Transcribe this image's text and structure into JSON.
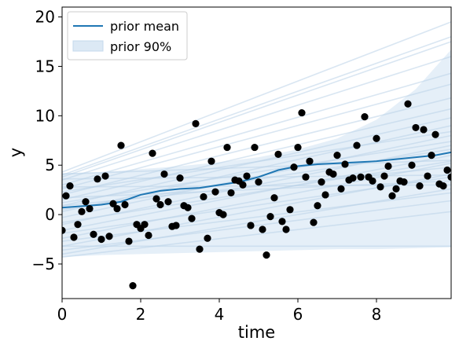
{
  "chart_data": {
    "type": "line",
    "title": "",
    "xlabel": "time",
    "ylabel": "y",
    "xlim": [
      0,
      9.9
    ],
    "ylim": [
      -8.5,
      21
    ],
    "xticks": [
      0,
      2,
      4,
      6,
      8
    ],
    "xtick_labels": [
      "0",
      "2",
      "4",
      "6",
      "8"
    ],
    "yticks": [
      -5,
      0,
      5,
      10,
      15,
      20
    ],
    "ytick_labels": [
      "−5",
      "0",
      "5",
      "10",
      "15",
      "20"
    ],
    "grid": false,
    "legend": {
      "placement": "top-left",
      "entries": [
        {
          "label": "prior mean",
          "kind": "line",
          "color": "#1f77b4"
        },
        {
          "label": "prior 90%",
          "kind": "band",
          "color": "#dce9f5"
        }
      ]
    },
    "series": [
      {
        "name": "prior mean",
        "color": "#1f77b4",
        "x": [
          0,
          0.5,
          1,
          1.5,
          2,
          2.5,
          3,
          3.5,
          4,
          4.5,
          5,
          5.5,
          6,
          6.5,
          7,
          7.5,
          8,
          8.5,
          9,
          9.5,
          9.9
        ],
        "y": [
          0.7,
          0.85,
          1.0,
          1.3,
          2.0,
          2.4,
          2.6,
          2.7,
          3.0,
          3.3,
          3.8,
          4.5,
          4.9,
          5.1,
          5.2,
          5.3,
          5.4,
          5.6,
          5.8,
          6.0,
          6.3
        ]
      },
      {
        "name": "prior 90%",
        "type": "area",
        "color": "#dce9f5",
        "x": [
          0,
          1,
          2,
          3,
          4,
          5,
          6,
          7,
          8,
          9,
          9.9
        ],
        "lower": [
          -4.3,
          -4.1,
          -4.0,
          -3.9,
          -3.8,
          -3.7,
          -3.6,
          -3.5,
          -3.5,
          -3.4,
          -3.3
        ],
        "upper": [
          4.2,
          4.3,
          4.6,
          4.9,
          5.3,
          5.8,
          6.6,
          7.7,
          9.6,
          12.7,
          16.7
        ]
      },
      {
        "name": "observations",
        "type": "scatter",
        "color": "#000000",
        "x": [
          0.0,
          0.1,
          0.2,
          0.3,
          0.4,
          0.5,
          0.6,
          0.7,
          0.8,
          0.9,
          1.0,
          1.1,
          1.2,
          1.3,
          1.4,
          1.5,
          1.6,
          1.7,
          1.8,
          1.9,
          2.0,
          2.1,
          2.2,
          2.3,
          2.4,
          2.5,
          2.6,
          2.7,
          2.8,
          2.9,
          3.0,
          3.1,
          3.2,
          3.3,
          3.4,
          3.5,
          3.6,
          3.7,
          3.8,
          3.9,
          4.0,
          4.1,
          4.2,
          4.3,
          4.4,
          4.5,
          4.6,
          4.7,
          4.8,
          4.9,
          5.0,
          5.1,
          5.2,
          5.3,
          5.4,
          5.5,
          5.6,
          5.7,
          5.8,
          5.9,
          6.0,
          6.1,
          6.2,
          6.3,
          6.4,
          6.5,
          6.6,
          6.7,
          6.8,
          6.9,
          7.0,
          7.1,
          7.2,
          7.3,
          7.4,
          7.5,
          7.6,
          7.7,
          7.8,
          7.9,
          8.0,
          8.1,
          8.2,
          8.3,
          8.4,
          8.5,
          8.6,
          8.7,
          8.8,
          8.9,
          9.0,
          9.1,
          9.2,
          9.3,
          9.4,
          9.5,
          9.6,
          9.7,
          9.8,
          9.9
        ],
        "y": [
          -1.6,
          1.9,
          2.9,
          -2.3,
          -1.0,
          0.3,
          1.3,
          0.6,
          -2.0,
          3.6,
          -2.5,
          3.9,
          -2.2,
          1.1,
          0.6,
          7.0,
          1.0,
          -2.7,
          -7.2,
          -1.0,
          -1.4,
          -1.0,
          -2.1,
          6.2,
          1.6,
          1.0,
          4.1,
          1.3,
          -1.2,
          -1.1,
          3.7,
          0.9,
          0.7,
          -0.4,
          9.2,
          -3.5,
          1.8,
          -2.4,
          5.4,
          2.3,
          0.2,
          0.0,
          6.8,
          2.2,
          3.5,
          3.4,
          3.0,
          3.9,
          -1.1,
          6.8,
          3.3,
          -1.5,
          -4.1,
          -0.2,
          1.7,
          6.1,
          -0.7,
          -1.5,
          0.5,
          4.8,
          6.8,
          10.3,
          3.8,
          5.4,
          -0.8,
          0.9,
          3.3,
          2.0,
          4.3,
          4.1,
          6.0,
          2.6,
          5.1,
          3.5,
          3.7,
          7.0,
          3.8,
          9.9,
          3.8,
          3.4,
          7.7,
          2.8,
          3.9,
          4.9,
          1.9,
          2.6,
          3.4,
          3.3,
          11.2,
          5.0,
          8.8,
          2.9,
          8.6,
          3.9,
          6.0,
          8.1,
          3.1,
          2.9,
          4.5,
          3.8
        ]
      }
    ],
    "prior_samples": [
      {
        "y0": -3.2,
        "y1": -3.2
      },
      {
        "y0": -4.3,
        "y1": 0.3
      },
      {
        "y0": -4.0,
        "y1": 2.6
      },
      {
        "y0": -3.2,
        "y1": 4.1
      },
      {
        "y0": -2.4,
        "y1": 5.2
      },
      {
        "y0": -1.6,
        "y1": 6.0
      },
      {
        "y0": -1.0,
        "y1": 7.0
      },
      {
        "y0": -0.3,
        "y1": 8.0
      },
      {
        "y0": 0.3,
        "y1": 9.0
      },
      {
        "y0": 0.9,
        "y1": 9.8
      },
      {
        "y0": 1.5,
        "y1": 10.7
      },
      {
        "y0": 2.0,
        "y1": 11.8
      },
      {
        "y0": 2.6,
        "y1": 13.2
      },
      {
        "y0": 3.0,
        "y1": 14.3
      },
      {
        "y0": 3.5,
        "y1": 16.0
      },
      {
        "y0": 3.8,
        "y1": 17.5
      },
      {
        "y0": 4.0,
        "y1": 18.0
      },
      {
        "y0": 4.3,
        "y1": 19.5
      },
      {
        "y0": 4.1,
        "y1": 5.5
      },
      {
        "y0": 3.6,
        "y1": 4.0
      },
      {
        "y0": 2.8,
        "y1": 3.0
      },
      {
        "y0": 1.7,
        "y1": 3.4
      },
      {
        "y0": 0.9,
        "y1": 4.8
      },
      {
        "y0": -0.8,
        "y1": 5.4
      },
      {
        "y0": -1.9,
        "y1": 3.8
      },
      {
        "y0": -2.7,
        "y1": 2.2
      },
      {
        "y0": -3.6,
        "y1": 1.4
      },
      {
        "y0": 0.5,
        "y1": 6.6
      },
      {
        "y0": 1.2,
        "y1": 7.4
      },
      {
        "y0": 2.3,
        "y1": 8.4
      }
    ]
  }
}
